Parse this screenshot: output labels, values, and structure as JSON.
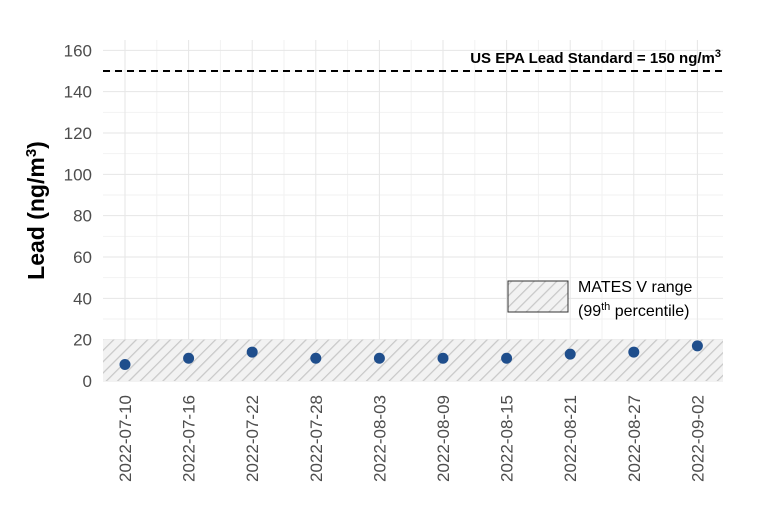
{
  "chart_data": {
    "type": "scatter",
    "title": "",
    "xlabel": "",
    "ylabel": "Lead (ng/m³)",
    "ylabel_main": "Lead (ng/m",
    "ylabel_sup": "3",
    "ylabel_end": ")",
    "ylim": [
      0,
      165
    ],
    "yticks": [
      0,
      20,
      40,
      60,
      80,
      100,
      120,
      140,
      160
    ],
    "grid": true,
    "categories": [
      "2022-07-10",
      "2022-07-16",
      "2022-07-22",
      "2022-07-28",
      "2022-08-03",
      "2022-08-09",
      "2022-08-15",
      "2022-08-21",
      "2022-08-27",
      "2022-09-02"
    ],
    "series": [
      {
        "values": [
          8,
          11,
          14,
          11,
          11,
          11,
          11,
          13,
          14,
          17
        ]
      }
    ],
    "point_color": "#1f4e8c",
    "reference_line": {
      "value": 150,
      "label_main": "US EPA Lead Standard = 150 ng/m",
      "label_sup": "3"
    },
    "shaded_band": {
      "ymin": 0,
      "ymax": 20,
      "legend_line1": "MATES V range",
      "legend_line2_pre": "(99",
      "legend_line2_sup": "th",
      "legend_line2_post": " percentile)"
    }
  }
}
